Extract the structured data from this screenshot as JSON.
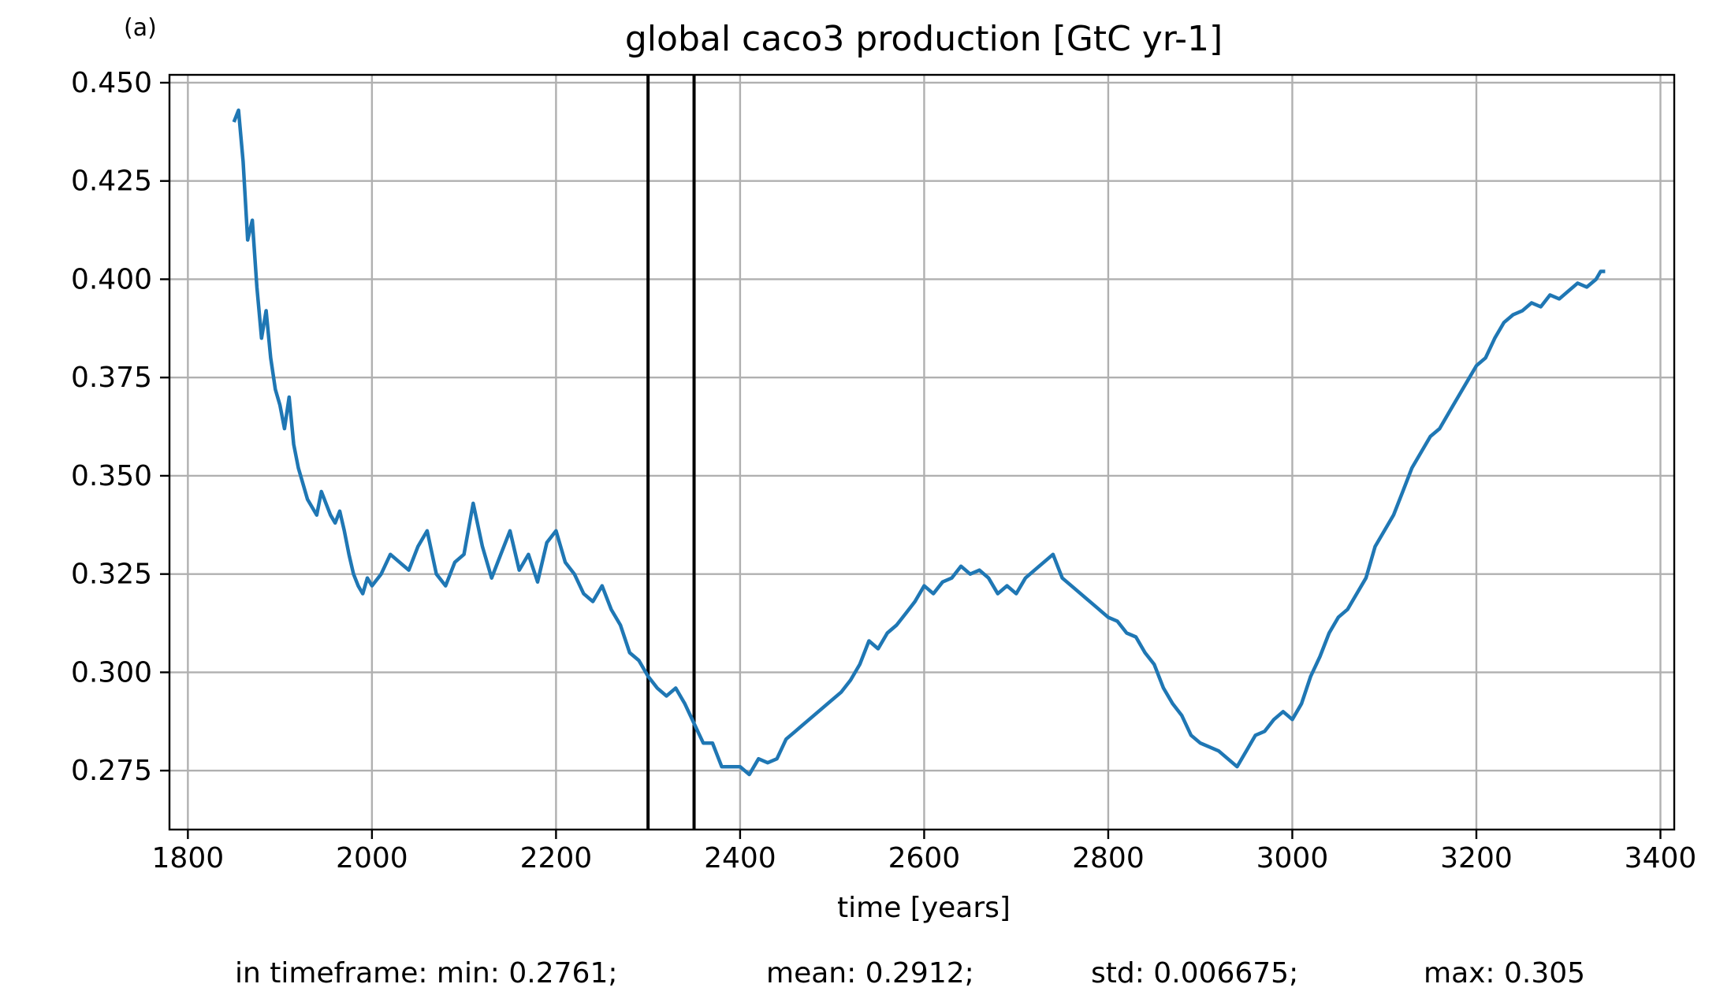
{
  "chart_data": {
    "type": "line",
    "panel_label": "(a)",
    "title": "global caco3 production [GtC yr-1]",
    "xlabel": "time [years]",
    "ylabel": "",
    "xlim": [
      1780,
      3415
    ],
    "ylim": [
      0.26,
      0.452
    ],
    "xticks": [
      1800,
      2000,
      2200,
      2400,
      2600,
      2800,
      3000,
      3200,
      3400
    ],
    "yticks": [
      0.275,
      0.3,
      0.325,
      0.35,
      0.375,
      0.4,
      0.425,
      0.45
    ],
    "xtick_labels": [
      "1800",
      "2000",
      "2200",
      "2400",
      "2600",
      "2800",
      "3000",
      "3200",
      "3400"
    ],
    "ytick_labels": [
      "0.275",
      "0.300",
      "0.325",
      "0.350",
      "0.375",
      "0.400",
      "0.425",
      "0.450"
    ],
    "grid": true,
    "series_color": "#1f77b4",
    "timeframe_lines": [
      2300,
      2350
    ],
    "series": [
      {
        "x": [
          1850,
          1855,
          1860,
          1865,
          1870,
          1875,
          1880,
          1885,
          1890,
          1895,
          1900,
          1905,
          1910,
          1915,
          1920,
          1925,
          1930,
          1935,
          1940,
          1945,
          1950,
          1955,
          1960,
          1965,
          1970,
          1975,
          1980,
          1985,
          1990,
          1995,
          2000,
          2010,
          2020,
          2030,
          2040,
          2050,
          2060,
          2070,
          2080,
          2090,
          2100,
          2110,
          2120,
          2130,
          2140,
          2150,
          2160,
          2170,
          2180,
          2190,
          2200,
          2210,
          2220,
          2230,
          2240,
          2250,
          2260,
          2270,
          2280,
          2290,
          2300,
          2310,
          2320,
          2330,
          2340,
          2350,
          2360,
          2370,
          2380,
          2390,
          2400,
          2410,
          2420,
          2430,
          2440,
          2450,
          2460,
          2470,
          2480,
          2490,
          2500,
          2510,
          2520,
          2530,
          2540,
          2550,
          2560,
          2570,
          2580,
          2590,
          2600,
          2610,
          2620,
          2630,
          2640,
          2650,
          2660,
          2670,
          2680,
          2690,
          2700,
          2710,
          2720,
          2730,
          2740,
          2750,
          2760,
          2770,
          2780,
          2790,
          2800,
          2810,
          2820,
          2830,
          2840,
          2850,
          2860,
          2870,
          2880,
          2890,
          2900,
          2910,
          2920,
          2930,
          2940,
          2950,
          2960,
          2970,
          2980,
          2990,
          3000,
          3010,
          3020,
          3030,
          3040,
          3050,
          3060,
          3070,
          3080,
          3090,
          3100,
          3110,
          3120,
          3130,
          3140,
          3150,
          3160,
          3170,
          3180,
          3190,
          3200,
          3210,
          3220,
          3230,
          3240,
          3250,
          3260,
          3270,
          3280,
          3290,
          3300,
          3310,
          3320,
          3330,
          3335,
          3340
        ],
        "values": [
          0.44,
          0.443,
          0.43,
          0.41,
          0.415,
          0.398,
          0.385,
          0.392,
          0.38,
          0.372,
          0.368,
          0.362,
          0.37,
          0.358,
          0.352,
          0.348,
          0.344,
          0.342,
          0.34,
          0.346,
          0.343,
          0.34,
          0.338,
          0.341,
          0.336,
          0.33,
          0.325,
          0.322,
          0.32,
          0.324,
          0.322,
          0.325,
          0.33,
          0.328,
          0.326,
          0.332,
          0.336,
          0.325,
          0.322,
          0.328,
          0.33,
          0.343,
          0.332,
          0.324,
          0.33,
          0.336,
          0.326,
          0.33,
          0.323,
          0.333,
          0.336,
          0.328,
          0.325,
          0.32,
          0.318,
          0.322,
          0.316,
          0.312,
          0.305,
          0.303,
          0.299,
          0.296,
          0.294,
          0.296,
          0.292,
          0.287,
          0.282,
          0.282,
          0.276,
          0.276,
          0.276,
          0.274,
          0.278,
          0.277,
          0.278,
          0.283,
          0.285,
          0.287,
          0.289,
          0.291,
          0.293,
          0.295,
          0.298,
          0.302,
          0.308,
          0.306,
          0.31,
          0.312,
          0.315,
          0.318,
          0.322,
          0.32,
          0.323,
          0.324,
          0.327,
          0.325,
          0.326,
          0.324,
          0.32,
          0.322,
          0.32,
          0.324,
          0.326,
          0.328,
          0.33,
          0.324,
          0.322,
          0.32,
          0.318,
          0.316,
          0.314,
          0.313,
          0.31,
          0.309,
          0.305,
          0.302,
          0.296,
          0.292,
          0.289,
          0.284,
          0.282,
          0.281,
          0.28,
          0.278,
          0.276,
          0.28,
          0.284,
          0.285,
          0.288,
          0.29,
          0.288,
          0.292,
          0.299,
          0.304,
          0.31,
          0.314,
          0.316,
          0.32,
          0.324,
          0.332,
          0.336,
          0.34,
          0.346,
          0.352,
          0.356,
          0.36,
          0.362,
          0.366,
          0.37,
          0.374,
          0.378,
          0.38,
          0.385,
          0.389,
          0.391,
          0.392,
          0.394,
          0.393,
          0.396,
          0.395,
          0.397,
          0.399,
          0.398,
          0.4,
          0.402,
          0.402
        ]
      }
    ]
  },
  "stats": {
    "label": "in timeframe: min: 0.2761;",
    "mean": "mean: 0.2912;",
    "std": "std: 0.006675;",
    "max": "max: 0.305"
  }
}
